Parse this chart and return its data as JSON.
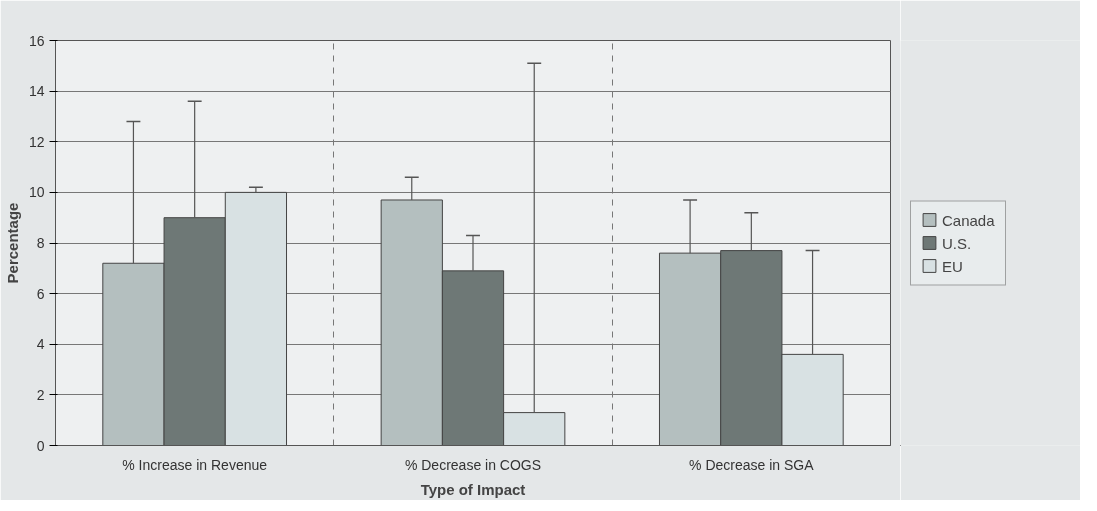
{
  "chart_data": {
    "type": "bar",
    "xlabel": "Type of Impact",
    "ylabel": "Percentage",
    "categories": [
      "% Increase in Revenue",
      "% Decrease in COGS",
      "% Decrease in SGA"
    ],
    "series": [
      {
        "name": "Canada",
        "color": "#b4bfbf",
        "values": [
          7.2,
          9.7,
          7.6
        ],
        "errors": [
          [
            7.2,
            12.8
          ],
          [
            9.7,
            10.6
          ],
          [
            7.6,
            9.7
          ]
        ]
      },
      {
        "name": "U.S.",
        "color": "#6e7876",
        "values": [
          9.0,
          6.9,
          7.7
        ],
        "errors": [
          [
            9.0,
            13.6
          ],
          [
            6.9,
            8.3
          ],
          [
            7.7,
            9.2
          ]
        ]
      },
      {
        "name": "EU",
        "color": "#d8e1e3",
        "values": [
          10.0,
          1.3,
          3.6
        ],
        "errors": [
          [
            10.0,
            10.2
          ],
          [
            1.3,
            15.1
          ],
          [
            3.6,
            7.7
          ]
        ]
      }
    ],
    "ylim": [
      0,
      16
    ],
    "yticks": [
      0,
      2,
      4,
      6,
      8,
      10,
      12,
      14,
      16
    ],
    "grid": true,
    "legend": "right"
  }
}
